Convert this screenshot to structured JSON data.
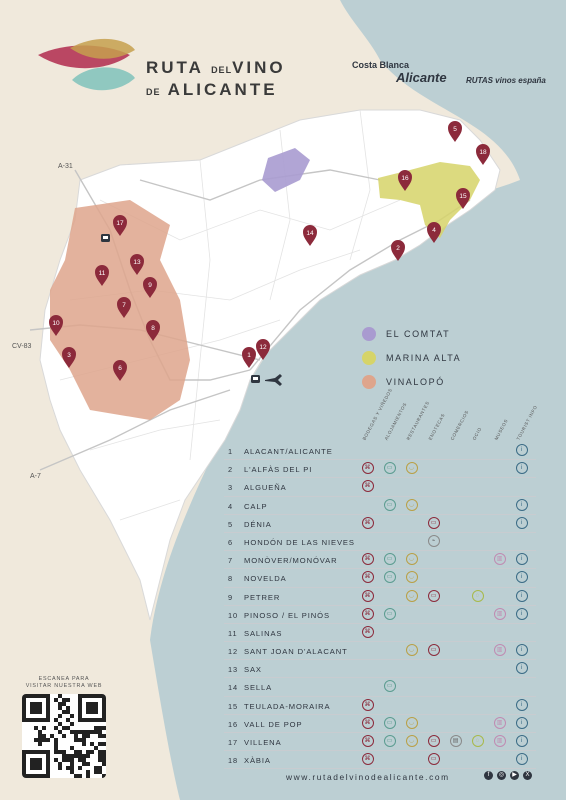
{
  "title": {
    "line1a": "RUTA",
    "line1b": "DEL",
    "line1c": "VINO",
    "line2a": "DE",
    "line2b": "ALICANTE"
  },
  "sponsors": {
    "costa_blanca": "Costa Blanca",
    "alicante": "Alicante",
    "vinos": "RUTAS vinos españa"
  },
  "roads": {
    "a31": "A-31",
    "cv83": "CV-83",
    "a7": "A-7"
  },
  "legend": [
    {
      "label": "EL COMTAT",
      "color": "#a99bd0"
    },
    {
      "label": "MARINA ALTA",
      "color": "#d6d469"
    },
    {
      "label": "VINALOPÓ",
      "color": "#dea58c"
    }
  ],
  "pins": [
    "1",
    "2",
    "3",
    "4",
    "5",
    "6",
    "7",
    "8",
    "9",
    "10",
    "11",
    "12",
    "13",
    "14",
    "15",
    "16",
    "17",
    "18"
  ],
  "columns": [
    "BODEGAS Y VIÑEDOS",
    "ALOJAMIENTOS",
    "RESTAURANTES",
    "ENOTECAS",
    "COMERCIOS",
    "OCIO",
    "MUSEOS",
    "TOURIST INFO"
  ],
  "table": [
    {
      "num": "1",
      "name": "ALACANT/ALICANTE"
    },
    {
      "num": "2",
      "name": "L'ALFÀS DEL PI"
    },
    {
      "num": "3",
      "name": "ALGUEÑA"
    },
    {
      "num": "4",
      "name": "CALP"
    },
    {
      "num": "5",
      "name": "DÉNIA"
    },
    {
      "num": "6",
      "name": "HONDÓN DE LAS NIEVES"
    },
    {
      "num": "7",
      "name": "MONÒVER/MONÓVAR"
    },
    {
      "num": "8",
      "name": "NOVELDA"
    },
    {
      "num": "9",
      "name": "PETRER"
    },
    {
      "num": "10",
      "name": "PINOSO / EL PINÓS"
    },
    {
      "num": "11",
      "name": "SALINAS"
    },
    {
      "num": "12",
      "name": "SANT JOAN D'ALACANT"
    },
    {
      "num": "13",
      "name": "SAX"
    },
    {
      "num": "14",
      "name": "SELLA"
    },
    {
      "num": "15",
      "name": "TEULADA-MORAIRA"
    },
    {
      "num": "16",
      "name": "VALL DE POP"
    },
    {
      "num": "17",
      "name": "VILLENA"
    },
    {
      "num": "18",
      "name": "XÀBIA"
    }
  ],
  "qr_text": {
    "l1": "ESCANEA PARA",
    "l2": "VISITAR NUESTRA WEB"
  },
  "url": "www.rutadelvinodealicante.com",
  "colors": {
    "sea": "#b9cdd2",
    "land": "#ffffff",
    "inland": "#f0e9dc",
    "wine": "#8c2a3b"
  }
}
